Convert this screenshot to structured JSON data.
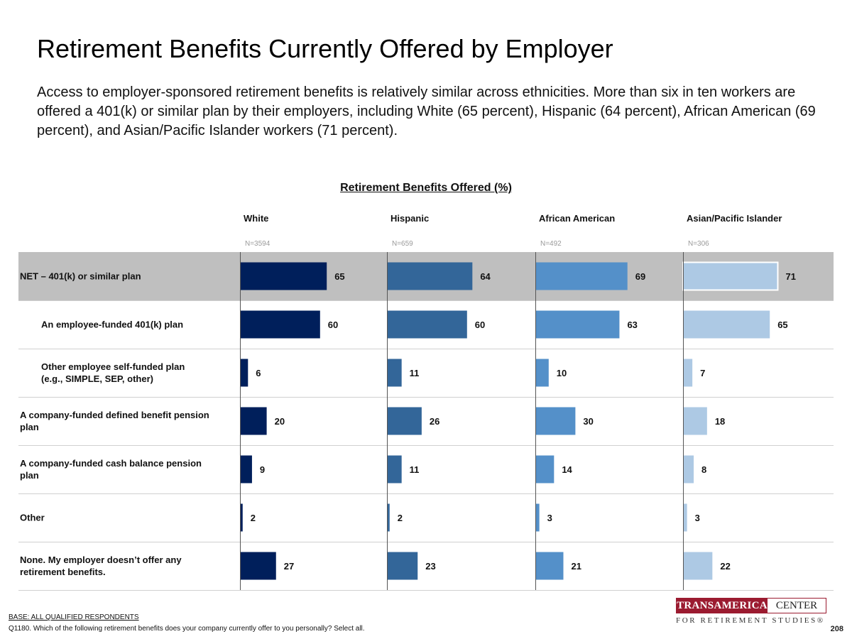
{
  "page": {
    "title": "Retirement Benefits Currently Offered by Employer",
    "subtitle": "Access to employer-sponsored retirement benefits is relatively similar across ethnicities. More than six in ten workers are offered a 401(k) or similar plan by their employers, including White (65 percent), Hispanic (64 percent), African American (69 percent), and Asian/Pacific Islander workers (71 percent).",
    "base": "BASE: ALL QUALIFIED RESPONDENTS",
    "question": "Q1180. Which of the following retirement benefits does your company currently offer to you personally? Select all.",
    "page_number": "208",
    "logo": {
      "part1": "TRANSAMERICA",
      "part2": "CENTER",
      "tagline": "FOR RETIREMENT STUDIES®",
      "color": "#9b1b30"
    }
  },
  "chart_data": {
    "type": "bar",
    "orientation": "horizontal",
    "title": "Retirement Benefits Offered (%)",
    "categories": [
      "NET – 401(k) or similar plan",
      "An employee-funded 401(k) plan",
      "Other employee self-funded plan (e.g., SIMPLE, SEP, other)",
      "A company-funded defined benefit pension plan",
      "A company-funded cash balance pension plan",
      "Other",
      "None. My employer doesn’t offer any retirement benefits."
    ],
    "category_lines": [
      [
        "NET – 401(k) or similar plan"
      ],
      [
        "An employee-funded 401(k) plan"
      ],
      [
        "Other employee self-funded plan",
        "(e.g., SIMPLE, SEP, other)"
      ],
      [
        "A company-funded defined benefit pension",
        "plan"
      ],
      [
        "A company-funded cash balance pension",
        "plan"
      ],
      [
        "Other"
      ],
      [
        "None. My employer doesn’t offer any",
        "retirement benefits."
      ]
    ],
    "indented": [
      false,
      true,
      true,
      false,
      false,
      false,
      false
    ],
    "highlight_row": 0,
    "series": [
      {
        "name": "White",
        "n": "N=3594",
        "color": "#001f5b",
        "values": [
          65,
          60,
          6,
          20,
          9,
          2,
          27
        ]
      },
      {
        "name": "Hispanic",
        "n": "N=659",
        "color": "#336699",
        "values": [
          64,
          60,
          11,
          26,
          11,
          2,
          23
        ]
      },
      {
        "name": "African American",
        "n": "N=492",
        "color": "#5490c9",
        "values": [
          69,
          63,
          10,
          30,
          14,
          3,
          21
        ]
      },
      {
        "name": "Asian/Pacific Islander",
        "n": "N=306",
        "color": "#adc9e4",
        "values": [
          71,
          65,
          7,
          18,
          8,
          3,
          22
        ]
      }
    ],
    "xlim": [
      0,
      100
    ],
    "highlight_color": "#bfbfbf",
    "legend": "column-headers"
  }
}
